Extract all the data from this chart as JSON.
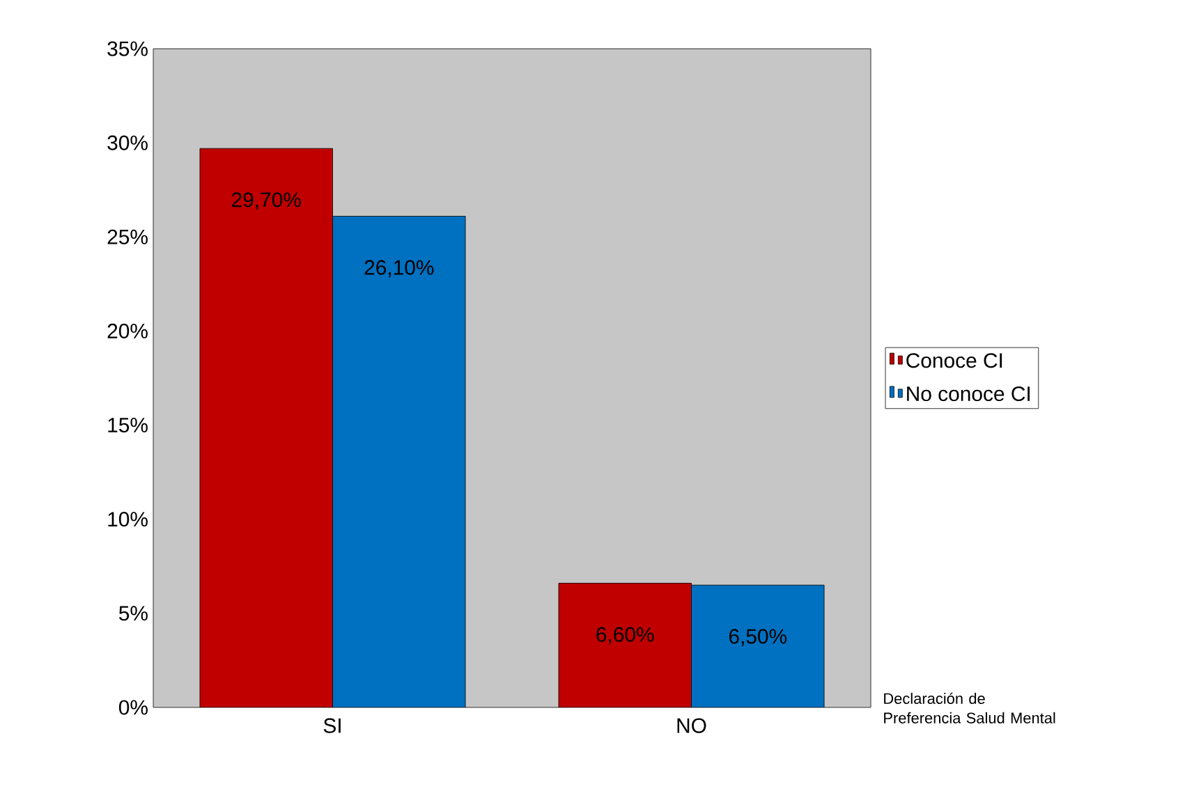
{
  "chart_data": {
    "type": "bar",
    "xlabel": "Declaración de Preferencia Salud Mental",
    "categories": [
      "SI",
      "NO"
    ],
    "series": [
      {
        "name": "Conoce CI",
        "color": "#c00000",
        "values": [
          29.7,
          6.6
        ],
        "value_labels": [
          "29,70%",
          "6,60%"
        ]
      },
      {
        "name": "No conoce CI",
        "color": "#0070c0",
        "values": [
          26.1,
          6.5
        ],
        "value_labels": [
          "26,10%",
          "6,50%"
        ]
      }
    ],
    "ylim": [
      0,
      35
    ],
    "yticks": [
      {
        "value": 0,
        "label": "0%"
      },
      {
        "value": 5,
        "label": "5%"
      },
      {
        "value": 10,
        "label": "10%"
      },
      {
        "value": 15,
        "label": "15%"
      },
      {
        "value": 20,
        "label": "20%"
      },
      {
        "value": 25,
        "label": "25%"
      },
      {
        "value": 30,
        "label": "30%"
      },
      {
        "value": 35,
        "label": "35%"
      }
    ],
    "legend": "right",
    "grid": false
  }
}
